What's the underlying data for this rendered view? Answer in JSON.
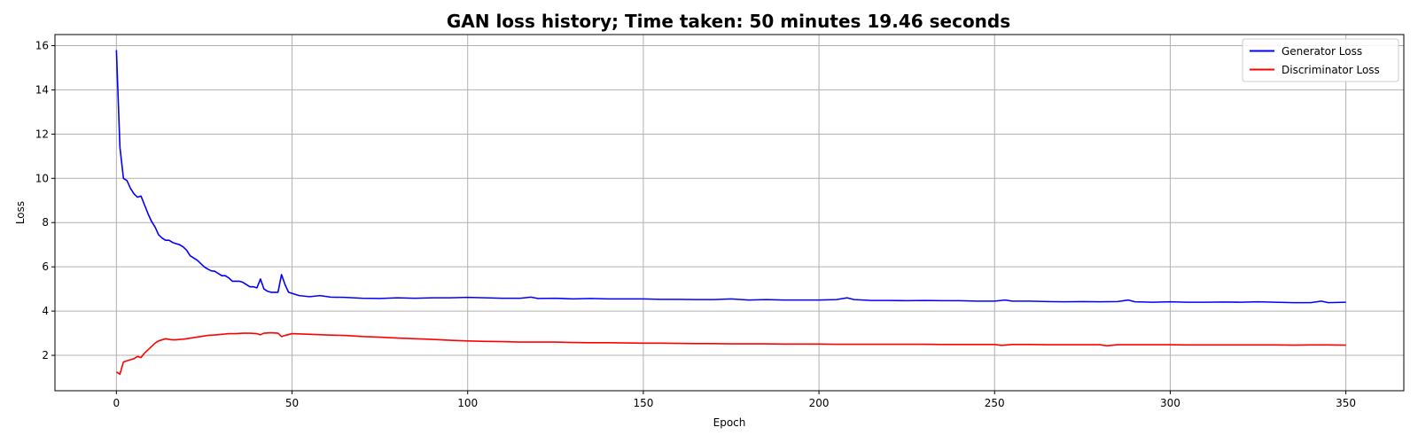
{
  "chart_data": {
    "type": "line",
    "title": "GAN loss history; Time taken: 50 minutes 19.46 seconds",
    "xlabel": "Epoch",
    "ylabel": "Loss",
    "xlim": [
      -17.5,
      366.5
    ],
    "ylim": [
      0.4,
      16.5
    ],
    "xticks": [
      0,
      50,
      100,
      150,
      200,
      250,
      300,
      350
    ],
    "yticks": [
      2,
      4,
      6,
      8,
      10,
      12,
      14,
      16
    ],
    "grid": true,
    "legend_position": "top-right",
    "series": [
      {
        "name": "Generator Loss",
        "color": "#0000ff",
        "points": [
          [
            0,
            15.8
          ],
          [
            1,
            11.4
          ],
          [
            2,
            10.0
          ],
          [
            3,
            9.9
          ],
          [
            4,
            9.55
          ],
          [
            5,
            9.3
          ],
          [
            6,
            9.15
          ],
          [
            7,
            9.2
          ],
          [
            8,
            8.8
          ],
          [
            9,
            8.4
          ],
          [
            10,
            8.05
          ],
          [
            11,
            7.8
          ],
          [
            12,
            7.45
          ],
          [
            13,
            7.3
          ],
          [
            14,
            7.2
          ],
          [
            15,
            7.2
          ],
          [
            16,
            7.1
          ],
          [
            17,
            7.05
          ],
          [
            18,
            7.0
          ],
          [
            19,
            6.9
          ],
          [
            20,
            6.75
          ],
          [
            21,
            6.5
          ],
          [
            22,
            6.4
          ],
          [
            23,
            6.3
          ],
          [
            24,
            6.15
          ],
          [
            25,
            6.0
          ],
          [
            26,
            5.9
          ],
          [
            27,
            5.82
          ],
          [
            28,
            5.8
          ],
          [
            29,
            5.7
          ],
          [
            30,
            5.6
          ],
          [
            31,
            5.6
          ],
          [
            32,
            5.5
          ],
          [
            33,
            5.35
          ],
          [
            34,
            5.35
          ],
          [
            35,
            5.35
          ],
          [
            36,
            5.3
          ],
          [
            37,
            5.2
          ],
          [
            38,
            5.1
          ],
          [
            39,
            5.1
          ],
          [
            40,
            5.05
          ],
          [
            41,
            5.45
          ],
          [
            42,
            5.0
          ],
          [
            43,
            4.9
          ],
          [
            44,
            4.85
          ],
          [
            45,
            4.85
          ],
          [
            46,
            4.85
          ],
          [
            47,
            5.65
          ],
          [
            48,
            5.2
          ],
          [
            49,
            4.85
          ],
          [
            50,
            4.8
          ],
          [
            52,
            4.7
          ],
          [
            55,
            4.65
          ],
          [
            58,
            4.7
          ],
          [
            61,
            4.63
          ],
          [
            65,
            4.62
          ],
          [
            70,
            4.58
          ],
          [
            75,
            4.57
          ],
          [
            80,
            4.6
          ],
          [
            85,
            4.58
          ],
          [
            90,
            4.6
          ],
          [
            95,
            4.6
          ],
          [
            100,
            4.62
          ],
          [
            105,
            4.6
          ],
          [
            110,
            4.58
          ],
          [
            115,
            4.58
          ],
          [
            118,
            4.63
          ],
          [
            120,
            4.57
          ],
          [
            125,
            4.58
          ],
          [
            130,
            4.55
          ],
          [
            135,
            4.57
          ],
          [
            140,
            4.55
          ],
          [
            145,
            4.55
          ],
          [
            150,
            4.55
          ],
          [
            155,
            4.53
          ],
          [
            160,
            4.53
          ],
          [
            165,
            4.52
          ],
          [
            170,
            4.52
          ],
          [
            175,
            4.55
          ],
          [
            180,
            4.5
          ],
          [
            185,
            4.52
          ],
          [
            190,
            4.5
          ],
          [
            195,
            4.5
          ],
          [
            200,
            4.5
          ],
          [
            205,
            4.52
          ],
          [
            208,
            4.6
          ],
          [
            210,
            4.52
          ],
          [
            215,
            4.48
          ],
          [
            220,
            4.48
          ],
          [
            225,
            4.47
          ],
          [
            230,
            4.48
          ],
          [
            235,
            4.47
          ],
          [
            240,
            4.47
          ],
          [
            245,
            4.45
          ],
          [
            250,
            4.45
          ],
          [
            253,
            4.5
          ],
          [
            255,
            4.45
          ],
          [
            260,
            4.45
          ],
          [
            265,
            4.43
          ],
          [
            270,
            4.42
          ],
          [
            275,
            4.43
          ],
          [
            280,
            4.42
          ],
          [
            285,
            4.43
          ],
          [
            288,
            4.5
          ],
          [
            290,
            4.42
          ],
          [
            295,
            4.4
          ],
          [
            300,
            4.42
          ],
          [
            305,
            4.4
          ],
          [
            310,
            4.4
          ],
          [
            315,
            4.41
          ],
          [
            320,
            4.4
          ],
          [
            325,
            4.42
          ],
          [
            330,
            4.4
          ],
          [
            335,
            4.38
          ],
          [
            340,
            4.38
          ],
          [
            343,
            4.45
          ],
          [
            345,
            4.38
          ],
          [
            350,
            4.4
          ]
        ]
      },
      {
        "name": "Discriminator Loss",
        "color": "#ff0000",
        "points": [
          [
            0,
            1.25
          ],
          [
            1,
            1.15
          ],
          [
            2,
            1.7
          ],
          [
            3,
            1.75
          ],
          [
            4,
            1.8
          ],
          [
            5,
            1.85
          ],
          [
            6,
            1.95
          ],
          [
            7,
            1.9
          ],
          [
            8,
            2.1
          ],
          [
            9,
            2.25
          ],
          [
            10,
            2.4
          ],
          [
            11,
            2.55
          ],
          [
            12,
            2.65
          ],
          [
            13,
            2.7
          ],
          [
            14,
            2.75
          ],
          [
            15,
            2.72
          ],
          [
            16,
            2.7
          ],
          [
            17,
            2.7
          ],
          [
            18,
            2.72
          ],
          [
            19,
            2.73
          ],
          [
            20,
            2.75
          ],
          [
            22,
            2.8
          ],
          [
            24,
            2.85
          ],
          [
            26,
            2.9
          ],
          [
            28,
            2.92
          ],
          [
            30,
            2.95
          ],
          [
            32,
            2.98
          ],
          [
            34,
            2.98
          ],
          [
            36,
            3.0
          ],
          [
            38,
            3.0
          ],
          [
            40,
            2.98
          ],
          [
            41,
            2.93
          ],
          [
            42,
            3.0
          ],
          [
            44,
            3.02
          ],
          [
            46,
            3.0
          ],
          [
            47,
            2.85
          ],
          [
            48,
            2.9
          ],
          [
            50,
            2.98
          ],
          [
            55,
            2.95
          ],
          [
            60,
            2.92
          ],
          [
            65,
            2.9
          ],
          [
            70,
            2.85
          ],
          [
            75,
            2.82
          ],
          [
            80,
            2.78
          ],
          [
            85,
            2.75
          ],
          [
            90,
            2.72
          ],
          [
            95,
            2.68
          ],
          [
            100,
            2.65
          ],
          [
            105,
            2.63
          ],
          [
            110,
            2.62
          ],
          [
            115,
            2.6
          ],
          [
            120,
            2.6
          ],
          [
            125,
            2.6
          ],
          [
            130,
            2.58
          ],
          [
            135,
            2.57
          ],
          [
            140,
            2.57
          ],
          [
            145,
            2.56
          ],
          [
            150,
            2.55
          ],
          [
            155,
            2.55
          ],
          [
            160,
            2.54
          ],
          [
            165,
            2.53
          ],
          [
            170,
            2.53
          ],
          [
            175,
            2.52
          ],
          [
            180,
            2.52
          ],
          [
            185,
            2.52
          ],
          [
            190,
            2.51
          ],
          [
            195,
            2.51
          ],
          [
            200,
            2.51
          ],
          [
            205,
            2.5
          ],
          [
            210,
            2.5
          ],
          [
            215,
            2.5
          ],
          [
            220,
            2.5
          ],
          [
            225,
            2.5
          ],
          [
            230,
            2.5
          ],
          [
            235,
            2.49
          ],
          [
            240,
            2.49
          ],
          [
            245,
            2.49
          ],
          [
            250,
            2.49
          ],
          [
            252,
            2.45
          ],
          [
            255,
            2.49
          ],
          [
            260,
            2.49
          ],
          [
            265,
            2.48
          ],
          [
            270,
            2.48
          ],
          [
            275,
            2.48
          ],
          [
            280,
            2.48
          ],
          [
            282,
            2.43
          ],
          [
            285,
            2.48
          ],
          [
            290,
            2.48
          ],
          [
            295,
            2.48
          ],
          [
            300,
            2.48
          ],
          [
            305,
            2.47
          ],
          [
            310,
            2.47
          ],
          [
            315,
            2.47
          ],
          [
            320,
            2.47
          ],
          [
            325,
            2.47
          ],
          [
            330,
            2.47
          ],
          [
            335,
            2.46
          ],
          [
            340,
            2.47
          ],
          [
            345,
            2.47
          ],
          [
            350,
            2.46
          ]
        ]
      }
    ]
  }
}
